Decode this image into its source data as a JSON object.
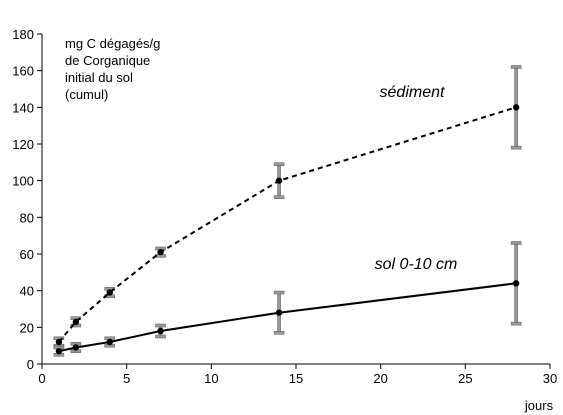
{
  "chart_data": {
    "type": "scatter",
    "title": "",
    "xlabel": "jours",
    "ylabel_lines": [
      "mg C dégagés/g",
      "de Corganique",
      "initial du sol",
      "(cumul)"
    ],
    "xlim": [
      0,
      30
    ],
    "ylim": [
      0,
      180
    ],
    "xticks": [
      "0",
      "5",
      "10",
      "15",
      "20",
      "25",
      "30"
    ],
    "yticks": [
      "0",
      "20",
      "40",
      "60",
      "80",
      "100",
      "120",
      "140",
      "160",
      "180"
    ],
    "grid": false,
    "legend": "none",
    "series": [
      {
        "name": "sédiment",
        "line_style": "dashed",
        "color": "#000000",
        "x": [
          1,
          2,
          4,
          7,
          14,
          28
        ],
        "y": [
          12,
          23,
          39,
          61,
          100,
          140
        ],
        "error": [
          2,
          2,
          2,
          2,
          9,
          22
        ]
      },
      {
        "name": "sol 0-10 cm",
        "line_style": "solid",
        "color": "#000000",
        "x": [
          1,
          2,
          4,
          7,
          14,
          28
        ],
        "y": [
          7,
          9,
          12,
          18,
          28,
          44
        ],
        "error": [
          2,
          2,
          2,
          3,
          11,
          22
        ]
      }
    ],
    "error_bar_color": "#999999"
  }
}
